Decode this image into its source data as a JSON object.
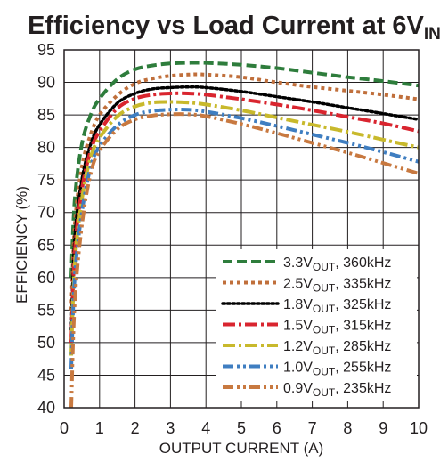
{
  "chart_data": {
    "type": "line",
    "title": "Efficiency vs Load Current at 6V",
    "title_subscript": "IN",
    "xlabel": "OUTPUT CURRENT (A)",
    "ylabel": "EFFICIENCY (%)",
    "xlim": [
      0,
      10
    ],
    "ylim": [
      40,
      95
    ],
    "x_ticks": [
      "0",
      "1",
      "2",
      "3",
      "4",
      "5",
      "6",
      "7",
      "8",
      "9",
      "10"
    ],
    "y_ticks": [
      "40",
      "45",
      "50",
      "55",
      "60",
      "65",
      "70",
      "75",
      "80",
      "85",
      "90",
      "95"
    ],
    "grid": true,
    "legend_position": "bottom-right",
    "series": [
      {
        "name": "3.3V",
        "name_sub": "OUT",
        "name_suffix": ", 360kHz",
        "color": "#2e7d3c",
        "dash": "dash",
        "x": [
          0.2,
          0.3,
          0.5,
          0.75,
          1,
          1.5,
          2,
          2.5,
          3,
          3.5,
          4,
          5,
          6,
          7,
          8,
          9,
          10
        ],
        "y": [
          60,
          72,
          80.5,
          85,
          87.5,
          90.5,
          92,
          92.6,
          92.9,
          93,
          93,
          92.7,
          92.2,
          91.5,
          90.8,
          90.2,
          89.5
        ]
      },
      {
        "name": "2.5V",
        "name_sub": "OUT",
        "name_suffix": ", 335kHz",
        "color": "#c06f3b",
        "dash": "dot-square",
        "x": [
          0.2,
          0.3,
          0.5,
          0.75,
          1,
          1.5,
          2,
          2.5,
          3,
          3.5,
          4,
          5,
          6,
          7,
          8,
          9,
          10
        ],
        "y": [
          55,
          68,
          77,
          82,
          85,
          88,
          89.8,
          90.6,
          91,
          91.2,
          91.2,
          90.8,
          90,
          89.3,
          88.7,
          88.1,
          87.4
        ]
      },
      {
        "name": "1.8V",
        "name_sub": "OUT",
        "name_suffix": ", 325kHz",
        "color": "#000000",
        "dash": "dot",
        "x": [
          0.2,
          0.3,
          0.5,
          0.75,
          1,
          1.5,
          2,
          2.5,
          3,
          3.5,
          4,
          5,
          6,
          7,
          8,
          9,
          10
        ],
        "y": [
          52,
          66,
          75,
          80.5,
          83.5,
          86.8,
          88.3,
          89,
          89.2,
          89.3,
          89.2,
          88.6,
          87.8,
          87,
          86.1,
          85.2,
          84.3
        ]
      },
      {
        "name": "1.5V",
        "name_sub": "OUT",
        "name_suffix": ", 315kHz",
        "color": "#d9252f",
        "dash": "dash-dot",
        "x": [
          0.2,
          0.3,
          0.5,
          0.75,
          1,
          1.5,
          2,
          2.5,
          3,
          3.5,
          4,
          5,
          6,
          7,
          8,
          9,
          10
        ],
        "y": [
          50,
          64,
          73.5,
          79.5,
          82.5,
          86,
          87.5,
          88.1,
          88.3,
          88.3,
          88.1,
          87.4,
          86.6,
          85.7,
          84.7,
          83.7,
          82.5
        ]
      },
      {
        "name": "1.2V",
        "name_sub": "OUT",
        "name_suffix": ", 285kHz",
        "color": "#c8b92c",
        "dash": "dash-dot",
        "x": [
          0.2,
          0.3,
          0.5,
          0.75,
          1,
          1.5,
          2,
          2.5,
          3,
          3.5,
          4,
          5,
          6,
          7,
          8,
          9,
          10
        ],
        "y": [
          48,
          62,
          72,
          78.5,
          81.5,
          84.8,
          86.3,
          86.9,
          87,
          86.9,
          86.6,
          85.7,
          84.6,
          83.5,
          82.4,
          81.2,
          80
        ]
      },
      {
        "name": "1.0V",
        "name_sub": "OUT",
        "name_suffix": ", 255kHz",
        "color": "#3f7ec1",
        "dash": "dash-dot-dot",
        "x": [
          0.2,
          0.3,
          0.5,
          0.75,
          1,
          1.5,
          2,
          2.5,
          3,
          3.5,
          4,
          5,
          6,
          7,
          8,
          9,
          10
        ],
        "y": [
          46,
          60,
          70,
          77,
          80.2,
          83.4,
          85,
          85.6,
          85.8,
          85.8,
          85.5,
          84.5,
          83.3,
          82,
          80.7,
          79.3,
          77.8
        ]
      },
      {
        "name": "0.9V",
        "name_sub": "OUT",
        "name_suffix": ", 235kHz",
        "color": "#c87940",
        "dash": "dash-dot-dot",
        "x": [
          0.2,
          0.3,
          0.5,
          0.75,
          1,
          1.5,
          2,
          2.5,
          3,
          3.5,
          4,
          5,
          6,
          7,
          8,
          9,
          10
        ],
        "y": [
          40,
          56,
          68,
          76,
          79.5,
          82.8,
          84.3,
          84.9,
          85.1,
          85.1,
          84.8,
          83.6,
          82.2,
          80.7,
          79.2,
          77.6,
          76
        ]
      }
    ]
  }
}
